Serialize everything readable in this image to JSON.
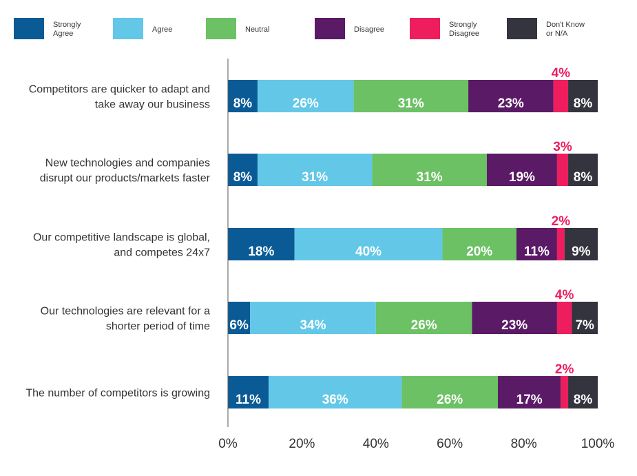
{
  "chart_data": {
    "type": "bar",
    "orientation": "horizontal",
    "stacked": true,
    "categories": [
      [
        "Competitors are quicker to adapt and",
        "take away our business"
      ],
      [
        "New technologies and companies",
        "disrupt our products/markets faster"
      ],
      [
        "Our competitive landscape is global,",
        "and competes 24x7"
      ],
      [
        "Our technologies are relevant for a",
        "shorter period of time"
      ],
      [
        "The number of competitors is growing"
      ]
    ],
    "series": [
      {
        "name": [
          "Strongly",
          "Agree"
        ],
        "color": "#0a5a96",
        "values": [
          8,
          8,
          18,
          6,
          11
        ]
      },
      {
        "name": [
          "Agree"
        ],
        "color": "#63c8e8",
        "values": [
          26,
          31,
          40,
          34,
          36
        ]
      },
      {
        "name": [
          "Neutral"
        ],
        "color": "#6cc164",
        "values": [
          31,
          31,
          20,
          26,
          26
        ]
      },
      {
        "name": [
          "Disagree"
        ],
        "color": "#5a1a66",
        "values": [
          23,
          19,
          11,
          23,
          17
        ]
      },
      {
        "name": [
          "Strongly",
          "Disagree"
        ],
        "color": "#ee1d5e",
        "values": [
          4,
          3,
          2,
          4,
          2
        ]
      },
      {
        "name": [
          "Don't Know",
          "or N/A"
        ],
        "color": "#33343d",
        "values": [
          8,
          8,
          9,
          7,
          8
        ]
      }
    ],
    "value_suffix": "%",
    "xlim": [
      0,
      100
    ],
    "xticks": [
      0,
      20,
      40,
      60,
      80,
      100
    ],
    "xtick_labels": [
      "0%",
      "20%",
      "40%",
      "60%",
      "80%",
      "100%"
    ],
    "legend_position": "top",
    "grid": false
  }
}
